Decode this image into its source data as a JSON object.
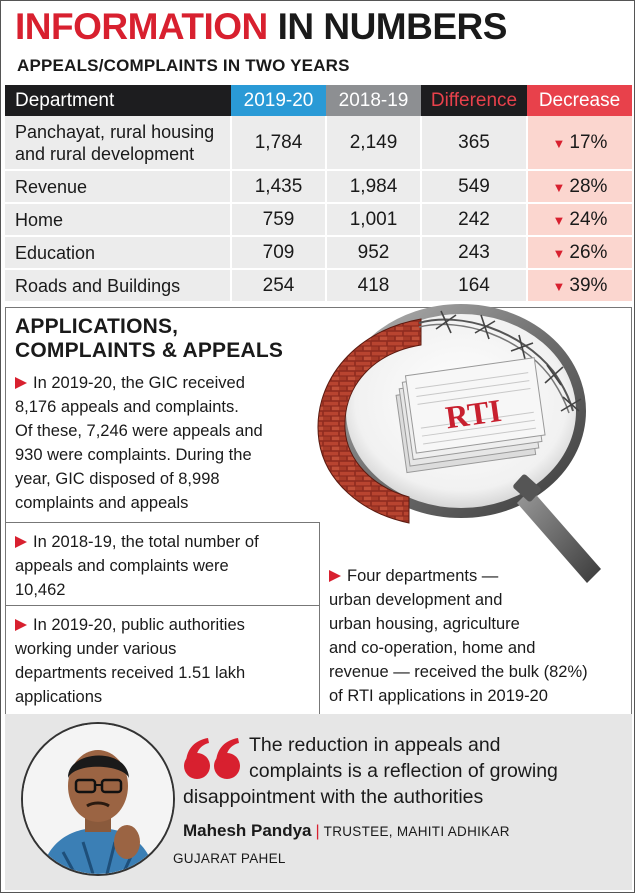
{
  "header": {
    "title_red": "INFORMATION",
    "title_black": "IN NUMBERS",
    "subtitle": "APPEALS/COMPLAINTS IN TWO YEARS"
  },
  "table": {
    "columns": [
      "Department",
      "2019-20",
      "2018-19",
      "Difference",
      "Decrease"
    ],
    "rows": [
      {
        "department_line1": "Panchayat, rural housing",
        "department_line2": "and rural development",
        "y2019": "1,784",
        "y2018": "2,149",
        "difference": "365",
        "decrease": "17%"
      },
      {
        "department_line1": "Revenue",
        "department_line2": "",
        "y2019": "1,435",
        "y2018": "1,984",
        "difference": "549",
        "decrease": "28%"
      },
      {
        "department_line1": "Home",
        "department_line2": "",
        "y2019": "759",
        "y2018": "1,001",
        "difference": "242",
        "decrease": "24%"
      },
      {
        "department_line1": "Education",
        "department_line2": "",
        "y2019": "709",
        "y2018": "952",
        "difference": "243",
        "decrease": "26%"
      },
      {
        "department_line1": "Roads and Buildings",
        "department_line2": "",
        "y2019": "254",
        "y2018": "418",
        "difference": "164",
        "decrease": "39%"
      }
    ],
    "arrow_glyph": "▼"
  },
  "section": {
    "title_line1": "APPLICATIONS,",
    "title_line2": "COMPLAINTS & APPEALS",
    "bullets": [
      [
        "In 2019-20, the GIC received",
        "8,176 appeals and complaints.",
        "Of these, 7,246 were appeals and",
        "930 were complaints. During the",
        "year, GIC disposed of 8,998",
        "complaints and appeals"
      ],
      [
        "In 2018-19, the total number of",
        "appeals and complaints were",
        "10,462"
      ],
      [
        "In 2019-20, public authorities",
        "working under various",
        "departments received 1.51 lakh",
        "applications"
      ],
      [
        "Four departments —",
        "urban development and",
        "urban housing, agriculture",
        "and co-operation, home and",
        "revenue — received the bulk (82%)",
        "of RTI applications in 2019-20"
      ]
    ],
    "illustration_label": "RTI"
  },
  "quote": {
    "line1": "The reduction in appeals and",
    "line2": "complaints is a reflection of growing",
    "line3": "disappointment with the authorities",
    "name": "Mahesh Pandya",
    "separator": "|",
    "role1": "TRUSTEE, MAHITI ADHIKAR",
    "role2": "GUJARAT PAHEL"
  },
  "colors": {
    "red": "#d8202f",
    "blue": "#2a9ad6",
    "grey": "#8d8f92",
    "salmon": "#fbd6cf"
  }
}
